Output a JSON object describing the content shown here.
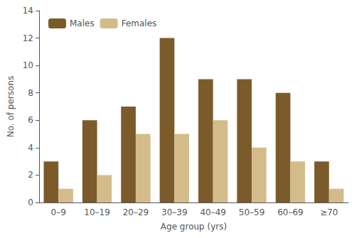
{
  "chart_data": {
    "type": "bar",
    "categories": [
      "0–9",
      "10–19",
      "20–29",
      "30–39",
      "40–49",
      "50–59",
      "60–69",
      "≥70"
    ],
    "series": [
      {
        "name": "Males",
        "color": "#7B5B2A",
        "values": [
          3,
          6,
          7,
          12,
          9,
          9,
          8,
          3
        ]
      },
      {
        "name": "Females",
        "color": "#D4BC8A",
        "values": [
          1,
          2,
          5,
          5,
          6,
          4,
          3,
          1
        ]
      }
    ],
    "xlabel": "Age group (yrs)",
    "ylabel": "No. of persons",
    "ylim": [
      0,
      14
    ],
    "yticks": [
      0,
      2,
      4,
      6,
      8,
      10,
      12,
      14
    ],
    "grid": false,
    "legend": "upper left"
  }
}
